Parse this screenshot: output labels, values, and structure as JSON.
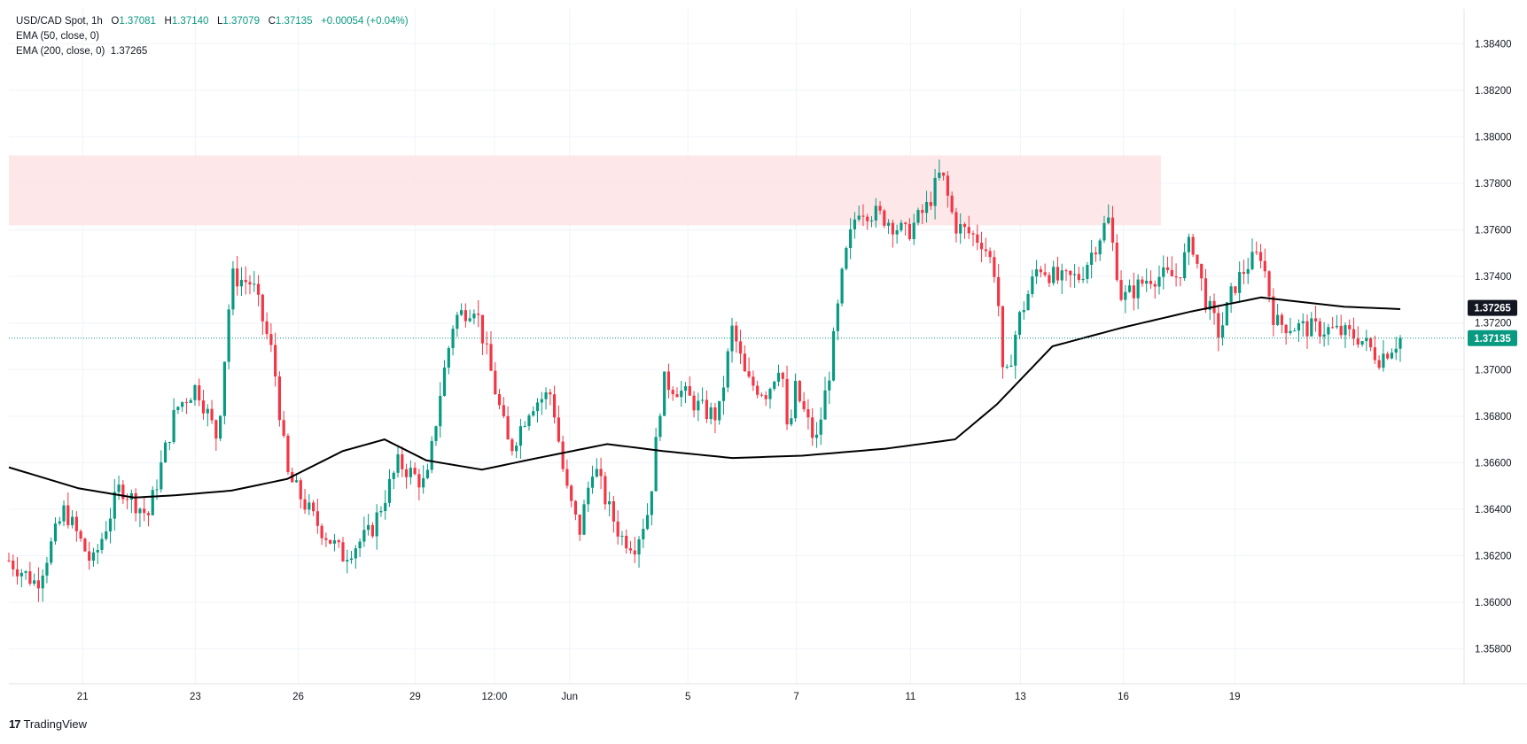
{
  "legend": {
    "symbol": "USD/CAD Spot, 1h",
    "o_label": "O",
    "o": "1.37081",
    "h_label": "H",
    "h": "1.37140",
    "l_label": "L",
    "l": "1.37079",
    "c_label": "C",
    "c": "1.37135",
    "change": "+0.00054 (+0.04%)",
    "ema50": "EMA (50, close, 0)",
    "ema200": "EMA (200, close, 0)",
    "ema200_value": "1.37265"
  },
  "brand": {
    "name": "TradingView",
    "logo": "17"
  },
  "colors": {
    "up": "#089981",
    "down": "#f23645",
    "ema": "#000000",
    "zone": "#fde3e5",
    "grid": "#f0f3fa"
  },
  "chart_data": {
    "type": "candlestick",
    "title": "USD/CAD Spot, 1h",
    "ylim": [
      1.3565,
      1.3855
    ],
    "y_ticks": [
      "1.35800",
      "1.36000",
      "1.36200",
      "1.36400",
      "1.36600",
      "1.36800",
      "1.37000",
      "1.37200",
      "1.37400",
      "1.37600",
      "1.37800",
      "1.38000",
      "1.38200",
      "1.38400"
    ],
    "x_tick_labels": [
      "21",
      "23",
      "26",
      "29",
      "12:00",
      "Jun",
      "5",
      "7",
      "11",
      "13",
      "16",
      "19"
    ],
    "resistance_zone": {
      "from": 1.3762,
      "to": 1.3792
    },
    "price_labels": [
      {
        "label": "EMA 200",
        "value": "1.37265"
      },
      {
        "label": "Last",
        "value": "1.37135"
      }
    ],
    "ema200_path": [
      [
        0,
        1.3658
      ],
      [
        0.05,
        1.3649
      ],
      [
        0.09,
        1.3645
      ],
      [
        0.12,
        1.3646
      ],
      [
        0.16,
        1.3648
      ],
      [
        0.2,
        1.3653
      ],
      [
        0.24,
        1.3665
      ],
      [
        0.27,
        1.367
      ],
      [
        0.3,
        1.3661
      ],
      [
        0.34,
        1.3657
      ],
      [
        0.38,
        1.3662
      ],
      [
        0.43,
        1.3668
      ],
      [
        0.47,
        1.3665
      ],
      [
        0.52,
        1.3662
      ],
      [
        0.57,
        1.3663
      ],
      [
        0.63,
        1.3666
      ],
      [
        0.68,
        1.367
      ],
      [
        0.71,
        1.3685
      ],
      [
        0.75,
        1.371
      ],
      [
        0.8,
        1.3718
      ],
      [
        0.85,
        1.3725
      ],
      [
        0.9,
        1.3731
      ],
      [
        0.96,
        1.3727
      ],
      [
        1.0,
        1.3726
      ]
    ],
    "close_path": [
      [
        0,
        1.3618
      ],
      [
        0.02,
        1.3608
      ],
      [
        0.04,
        1.364
      ],
      [
        0.06,
        1.3616
      ],
      [
        0.08,
        1.365
      ],
      [
        0.1,
        1.3637
      ],
      [
        0.12,
        1.3683
      ],
      [
        0.135,
        1.3693
      ],
      [
        0.15,
        1.367
      ],
      [
        0.16,
        1.374
      ],
      [
        0.175,
        1.3737
      ],
      [
        0.19,
        1.3705
      ],
      [
        0.2,
        1.3655
      ],
      [
        0.22,
        1.3635
      ],
      [
        0.24,
        1.362
      ],
      [
        0.26,
        1.363
      ],
      [
        0.28,
        1.366
      ],
      [
        0.3,
        1.365
      ],
      [
        0.31,
        1.369
      ],
      [
        0.32,
        1.3722
      ],
      [
        0.335,
        1.3728
      ],
      [
        0.35,
        1.369
      ],
      [
        0.36,
        1.3665
      ],
      [
        0.375,
        1.3685
      ],
      [
        0.39,
        1.369
      ],
      [
        0.4,
        1.365
      ],
      [
        0.41,
        1.363
      ],
      [
        0.42,
        1.366
      ],
      [
        0.43,
        1.3642
      ],
      [
        0.44,
        1.3628
      ],
      [
        0.45,
        1.3625
      ],
      [
        0.46,
        1.364
      ],
      [
        0.47,
        1.3695
      ],
      [
        0.48,
        1.3692
      ],
      [
        0.5,
        1.3682
      ],
      [
        0.51,
        1.368
      ],
      [
        0.52,
        1.3718
      ],
      [
        0.53,
        1.3695
      ],
      [
        0.545,
        1.369
      ],
      [
        0.555,
        1.3705
      ],
      [
        0.56,
        1.3668
      ],
      [
        0.565,
        1.3692
      ],
      [
        0.58,
        1.3668
      ],
      [
        0.59,
        1.37
      ],
      [
        0.6,
        1.3745
      ],
      [
        0.61,
        1.377
      ],
      [
        0.63,
        1.3765
      ],
      [
        0.645,
        1.3758
      ],
      [
        0.66,
        1.377
      ],
      [
        0.67,
        1.3785
      ],
      [
        0.68,
        1.3762
      ],
      [
        0.7,
        1.3755
      ],
      [
        0.71,
        1.374
      ],
      [
        0.715,
        1.369
      ],
      [
        0.725,
        1.372
      ],
      [
        0.74,
        1.3745
      ],
      [
        0.755,
        1.3738
      ],
      [
        0.77,
        1.374
      ],
      [
        0.79,
        1.3765
      ],
      [
        0.8,
        1.373
      ],
      [
        0.82,
        1.374
      ],
      [
        0.84,
        1.374
      ],
      [
        0.85,
        1.3756
      ],
      [
        0.86,
        1.373
      ],
      [
        0.87,
        1.3715
      ],
      [
        0.88,
        1.3735
      ],
      [
        0.89,
        1.3745
      ],
      [
        0.9,
        1.375
      ],
      [
        0.91,
        1.372
      ],
      [
        0.93,
        1.3718
      ],
      [
        0.95,
        1.3717
      ],
      [
        0.97,
        1.3714
      ],
      [
        0.985,
        1.3705
      ],
      [
        1.0,
        1.37135
      ]
    ]
  }
}
